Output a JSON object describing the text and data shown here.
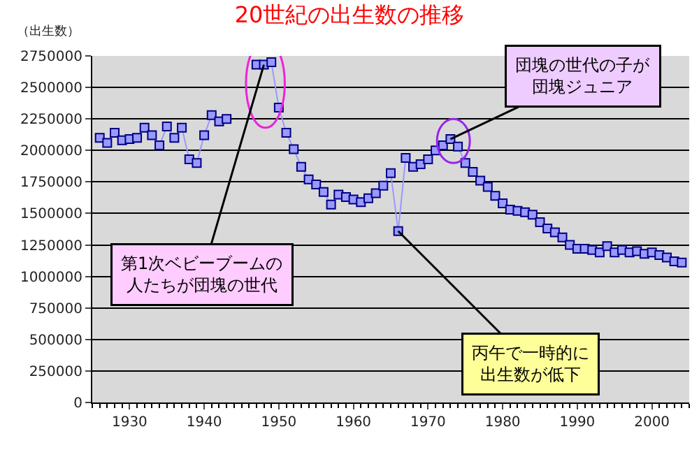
{
  "chart_data": {
    "type": "line",
    "title": "20世紀の出生数の推移",
    "ylabel": "（出生数）",
    "x": [
      1926,
      1927,
      1928,
      1929,
      1930,
      1931,
      1932,
      1933,
      1934,
      1935,
      1936,
      1937,
      1938,
      1939,
      1940,
      1941,
      1942,
      1943,
      1944,
      1945,
      1946,
      1947,
      1948,
      1949,
      1950,
      1951,
      1952,
      1953,
      1954,
      1955,
      1956,
      1957,
      1958,
      1959,
      1960,
      1961,
      1962,
      1963,
      1964,
      1965,
      1966,
      1967,
      1968,
      1969,
      1970,
      1971,
      1972,
      1973,
      1974,
      1975,
      1976,
      1977,
      1978,
      1979,
      1980,
      1981,
      1982,
      1983,
      1984,
      1985,
      1986,
      1987,
      1988,
      1989,
      1990,
      1991,
      1992,
      1993,
      1994,
      1995,
      1996,
      1997,
      1998,
      1999,
      2000,
      2001,
      2002,
      2003,
      2004
    ],
    "series": [
      {
        "color": "#9999ff",
        "values": [
          2100000,
          2060000,
          2140000,
          2080000,
          2090000,
          2100000,
          2180000,
          2120000,
          2040000,
          2190000,
          2100000,
          2180000,
          1930000,
          1900000,
          2120000,
          2280000,
          2230000,
          2250000,
          null,
          null,
          null,
          2680000,
          2680000,
          2700000,
          2340000,
          2140000,
          2010000,
          1870000,
          1770000,
          1730000,
          1670000,
          1570000,
          1650000,
          1630000,
          1610000,
          1590000,
          1620000,
          1660000,
          1720000,
          1820000,
          1360000,
          1940000,
          1870000,
          1890000,
          1930000,
          2000000,
          2040000,
          2090000,
          2030000,
          1900000,
          1830000,
          1760000,
          1710000,
          1640000,
          1580000,
          1530000,
          1520000,
          1510000,
          1490000,
          1430000,
          1380000,
          1350000,
          1310000,
          1250000,
          1220000,
          1220000,
          1210000,
          1190000,
          1240000,
          1190000,
          1210000,
          1190000,
          1200000,
          1180000,
          1190000,
          1170000,
          1150000,
          1120000,
          1110000
        ]
      }
    ],
    "xlim": [
      1925,
      2005
    ],
    "xticks": [
      1930,
      1940,
      1950,
      1960,
      1970,
      1980,
      1990,
      2000
    ],
    "ylim": [
      0,
      2750000
    ],
    "yticks": [
      0,
      250000,
      500000,
      750000,
      1000000,
      1250000,
      1500000,
      1750000,
      2000000,
      2250000,
      2500000,
      2750000
    ],
    "grid": "y",
    "marker": "square",
    "line_style": "solid",
    "annotations": [
      {
        "text": "第1次ベビーブームの人たちが団塊の世代",
        "x": 1948,
        "y": 2680000
      },
      {
        "text": "丙午で一時的に出生数が低下",
        "x": 1966,
        "y": 1360000
      },
      {
        "text": "団塊の世代の子が団塊ジュニア",
        "x": 1973,
        "y": 2090000
      }
    ]
  }
}
